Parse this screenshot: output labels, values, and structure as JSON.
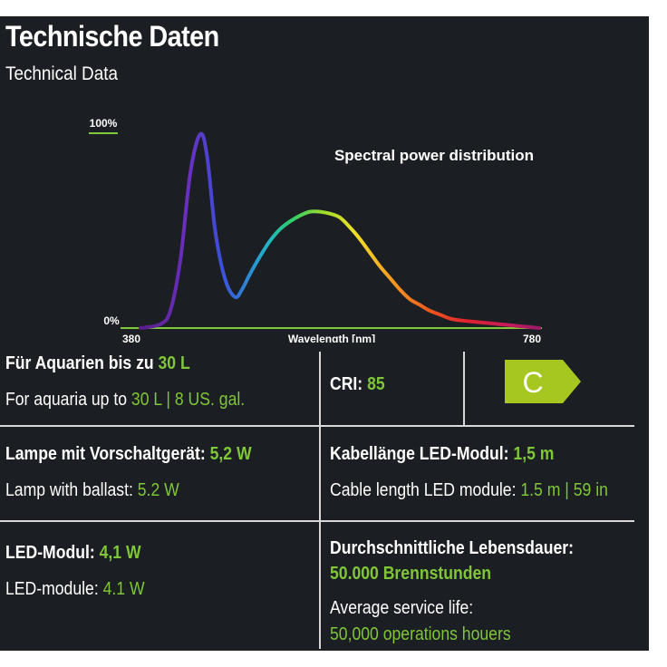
{
  "header": {
    "title": "Technische Daten",
    "subtitle": "Technical Data"
  },
  "chart": {
    "title": "Spectral power distribution",
    "y_top_label": "100%",
    "y_bottom_label": "0%",
    "x_min_label": "380",
    "x_max_label": "780",
    "x_axis_label": "Wavelength [nm]"
  },
  "chart_data": {
    "type": "line",
    "title": "Spectral power distribution",
    "xlabel": "Wavelength [nm]",
    "ylabel": "",
    "xlim": [
      380,
      780
    ],
    "ylim": [
      0,
      100
    ],
    "grid": false,
    "series": [
      {
        "x": [
          380,
          400,
          410,
          420,
          430,
          440,
          447,
          455,
          465,
          475,
          482,
          490,
          500,
          510,
          520,
          530,
          540,
          550,
          560,
          570,
          580,
          590,
          600,
          610,
          620,
          630,
          640,
          650,
          660,
          670,
          680,
          690,
          700,
          720,
          740,
          760,
          780
        ],
        "values": [
          0,
          2,
          9,
          35,
          80,
          100,
          88,
          50,
          25,
          16,
          20,
          28,
          37,
          45,
          51,
          55,
          58,
          60,
          60,
          59,
          57,
          52,
          46,
          39,
          32,
          26,
          20,
          15,
          12,
          9,
          7,
          5,
          4,
          3,
          2,
          1,
          0
        ]
      }
    ]
  },
  "specs": {
    "aquarium_de_prefix": "Für Aquarien bis zu ",
    "aquarium_de_value": "30 L",
    "aquarium_en_prefix": "For aquaria up to ",
    "aquarium_en_value": "30 L | 8 US. gal.",
    "cri_label": "CRI: ",
    "cri_value": "85",
    "energy_class": "C",
    "lamp_de_label": "Lampe mit Vorschaltgerät: ",
    "lamp_de_value": "5,2 W",
    "lamp_en_label": "Lamp with ballast: ",
    "lamp_en_value": "5.2 W",
    "cable_de_label": "Kabellänge LED-Modul: ",
    "cable_de_value": "1,5 m",
    "cable_en_label": "Cable length LED module: ",
    "cable_en_value": "1.5 m | 59 in",
    "led_de_label": "LED-Modul: ",
    "led_de_value": "4,1 W",
    "led_en_label": "LED-module: ",
    "led_en_value": "4.1 W",
    "life_de_label": "Durchschnittliche Lebensdauer:",
    "life_de_value": "50.000 Brennstunden",
    "life_en_label": "Average service life:",
    "life_en_value": "50,000 operations houers"
  },
  "colors": {
    "background": "#1b1e22",
    "accent_green": "#7fc638",
    "divider": "#d8d8d8",
    "badge_yellow": "#a5c71f"
  }
}
